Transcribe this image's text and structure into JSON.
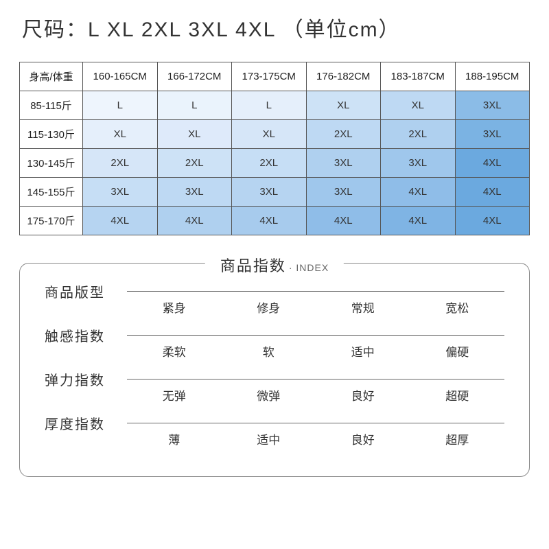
{
  "title": "尺码：L XL 2XL 3XL 4XL   （单位cm）",
  "size_table": {
    "header_label": "身高/体重",
    "columns": [
      "160-165CM",
      "166-172CM",
      "173-175CM",
      "176-182CM",
      "183-187CM",
      "188-195CM"
    ],
    "rows": [
      {
        "label": "85-115斤",
        "cells": [
          "L",
          "L",
          "L",
          "XL",
          "XL",
          "3XL"
        ]
      },
      {
        "label": "115-130斤",
        "cells": [
          "XL",
          "XL",
          "XL",
          "2XL",
          "2XL",
          "3XL"
        ]
      },
      {
        "label": "130-145斤",
        "cells": [
          "2XL",
          "2XL",
          "2XL",
          "3XL",
          "3XL",
          "4XL"
        ]
      },
      {
        "label": "145-155斤",
        "cells": [
          "3XL",
          "3XL",
          "3XL",
          "3XL",
          "4XL",
          "4XL"
        ]
      },
      {
        "label": "175-170斤",
        "cells": [
          "4XL",
          "4XL",
          "4XL",
          "4XL",
          "4XL",
          "4XL"
        ]
      }
    ],
    "cell_colors": [
      [
        "#eef5fd",
        "#eaf3fc",
        "#e5effb",
        "#cde2f6",
        "#bed9f3",
        "#8bbce7"
      ],
      [
        "#e5effb",
        "#deeafa",
        "#d6e6f8",
        "#bed9f3",
        "#afd0ef",
        "#7bb3e3"
      ],
      [
        "#d6e6f8",
        "#cde2f6",
        "#c6def5",
        "#afd0ef",
        "#9fc7ec",
        "#6ba9df"
      ],
      [
        "#c6def5",
        "#bed9f3",
        "#b6d4f1",
        "#9fc7ec",
        "#8fbde8",
        "#6ba9df"
      ],
      [
        "#b6d4f1",
        "#afd0ef",
        "#a7cbed",
        "#8fbde8",
        "#7fb4e4",
        "#6ba9df"
      ]
    ],
    "border_color": "#555555",
    "label_bg": "#ffffff"
  },
  "index_section": {
    "title_cn": "商品指数",
    "title_en": "· INDEX",
    "rows": [
      {
        "label": "商品版型",
        "options": [
          "紧身",
          "修身",
          "常规",
          "宽松"
        ]
      },
      {
        "label": "触感指数",
        "options": [
          "柔软",
          "软",
          "适中",
          "偏硬"
        ]
      },
      {
        "label": "弹力指数",
        "options": [
          "无弹",
          "微弹",
          "良好",
          "超硬"
        ]
      },
      {
        "label": "厚度指数",
        "options": [
          "薄",
          "适中",
          "良好",
          "超厚"
        ]
      }
    ],
    "border_color": "#888888",
    "line_color": "#666666",
    "label_fontsize": 20,
    "option_fontsize": 17
  },
  "background_color": "#ffffff"
}
